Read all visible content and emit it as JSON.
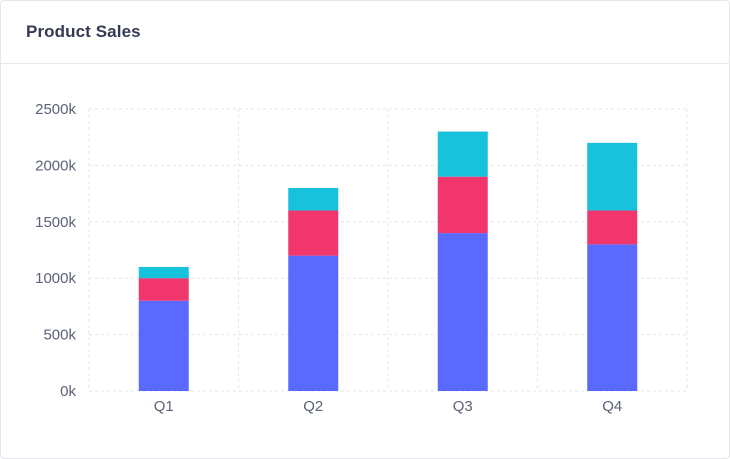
{
  "card": {
    "title": "Product Sales"
  },
  "chart_data": {
    "type": "bar",
    "stacked": true,
    "title": "Product Sales",
    "categories": [
      "Q1",
      "Q2",
      "Q3",
      "Q4"
    ],
    "series": [
      {
        "values": [
          800,
          1200,
          1400,
          1300
        ],
        "color": "#5a69fe"
      },
      {
        "values": [
          200,
          400,
          500,
          300
        ],
        "color": "#f1356d"
      },
      {
        "values": [
          100,
          200,
          400,
          600
        ],
        "color": "#17c2dd"
      }
    ],
    "ylim": [
      0,
      2500
    ],
    "yticks": [
      0,
      500,
      1000,
      1500,
      2000,
      2500
    ],
    "ytick_labels": [
      "0k",
      "500k",
      "1000k",
      "1500k",
      "2000k",
      "2500k"
    ],
    "grid": true,
    "grid_style": "dashed"
  }
}
